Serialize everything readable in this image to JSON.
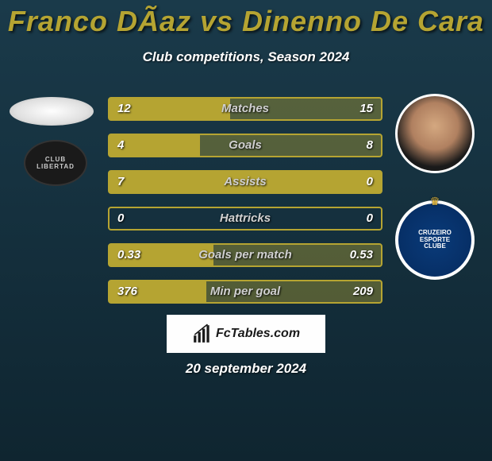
{
  "header": {
    "title": "Franco DÃ­az vs Dinenno De Cara",
    "title_color": "#b5a432",
    "title_fontsize": 36,
    "subtitle": "Club competitions, Season 2024",
    "subtitle_color": "#ffffff"
  },
  "background": {
    "gradient_top": "#1a3a4a",
    "gradient_bottom": "#0f2530"
  },
  "bars": {
    "bar_border_color": "#b5a432",
    "bar_fill_full": "#b5a432",
    "bar_fill_faded": "#b5a43266",
    "label_color": "#d0d0d0",
    "value_color": "#ffffff",
    "rows": [
      {
        "label": "Matches",
        "left_val": "12",
        "right_val": "15",
        "left_pct": 44.4,
        "right_pct": 55.6
      },
      {
        "label": "Goals",
        "left_val": "4",
        "right_val": "8",
        "left_pct": 33.3,
        "right_pct": 66.7
      },
      {
        "label": "Assists",
        "left_val": "7",
        "right_val": "0",
        "left_pct": 100.0,
        "right_pct": 0.0
      },
      {
        "label": "Hattricks",
        "left_val": "0",
        "right_val": "0",
        "left_pct": 0.0,
        "right_pct": 0.0
      },
      {
        "label": "Goals per match",
        "left_val": "0.33",
        "right_val": "0.53",
        "left_pct": 38.4,
        "right_pct": 61.6
      },
      {
        "label": "Min per goal",
        "left_val": "376",
        "right_val": "209",
        "left_pct": 35.7,
        "right_pct": 64.3
      }
    ]
  },
  "player_left": {
    "club_text": "CLUB LIBERTAD"
  },
  "player_right": {
    "club_lines": [
      "CRUZEIRO",
      "ESPORTE",
      "CLUBE"
    ]
  },
  "brand": {
    "text": "FcTables.com",
    "box_bg": "#fefefe",
    "text_color": "#1a1a1a"
  },
  "footer": {
    "date": "20 september 2024"
  }
}
